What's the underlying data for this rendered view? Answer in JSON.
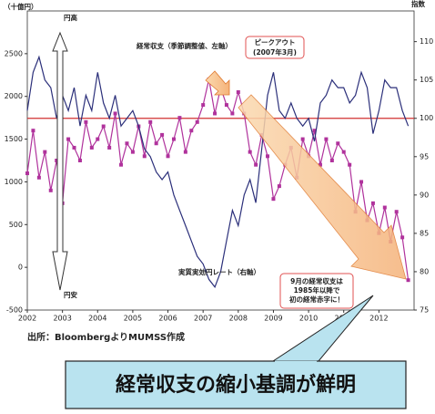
{
  "chart_data": {
    "type": "line",
    "left_axis_unit": "（十億円）",
    "right_axis_unit": "指数",
    "categories": [
      "2002",
      null,
      null,
      null,
      null,
      null,
      "2003",
      null,
      null,
      null,
      null,
      null,
      "2004",
      null,
      null,
      null,
      null,
      null,
      "2005",
      null,
      null,
      null,
      null,
      null,
      "2006",
      null,
      null,
      null,
      null,
      null,
      "2007",
      null,
      null,
      null,
      null,
      null,
      "2008",
      null,
      null,
      null,
      null,
      null,
      "2009",
      null,
      null,
      null,
      null,
      null,
      "2010",
      null,
      null,
      null,
      null,
      null,
      "2011",
      null,
      null,
      null,
      null,
      null,
      "2012",
      null,
      null,
      null,
      null,
      null
    ],
    "series": [
      {
        "name": "経常収支（季節調整値、左軸）",
        "color": "#b0329c",
        "marker": "square",
        "values": [
          1100,
          1600,
          1050,
          1350,
          900,
          1250,
          750,
          1500,
          1400,
          1250,
          1700,
          1400,
          1500,
          1650,
          1400,
          1800,
          1200,
          1450,
          1350,
          1650,
          1300,
          1700,
          1450,
          1550,
          1300,
          1500,
          1750,
          1350,
          1600,
          1700,
          1900,
          2200,
          1800,
          2100,
          1900,
          1800,
          2050,
          1800,
          1350,
          1200,
          1550,
          1300,
          800,
          950,
          1200,
          1400,
          1050,
          1500,
          1300,
          1600,
          1200,
          1500,
          1250,
          1450,
          1350,
          1200,
          650,
          1000,
          550,
          750,
          400,
          700,
          300,
          650,
          350,
          -150
        ]
      },
      {
        "name": "実質実効円レート（右軸）",
        "color": "#2b2f7a",
        "axis": "y2",
        "values": [
          101,
          106,
          108,
          105,
          104,
          100,
          103,
          101,
          104,
          99,
          103,
          101,
          106,
          102,
          100,
          103,
          99,
          100,
          101,
          99,
          96,
          95,
          93,
          92,
          93,
          90,
          88,
          86,
          84,
          82,
          81,
          79,
          78,
          80,
          84,
          88,
          86,
          90,
          92,
          89,
          96,
          103,
          106,
          101,
          100,
          102,
          100,
          99,
          100,
          97,
          102,
          103,
          105,
          104,
          104,
          102,
          103,
          106,
          104,
          98,
          101,
          105,
          104,
          104,
          101,
          99
        ]
      }
    ],
    "ylim": [
      -500,
      3000
    ],
    "yticks": [
      -500,
      0,
      500,
      1000,
      1500,
      2000,
      2500
    ],
    "y2lim": [
      75,
      114
    ],
    "y2ticks": [
      75,
      80,
      85,
      90,
      95,
      100,
      105,
      110
    ],
    "reference_line": {
      "axis": "y2",
      "value": 100,
      "color": "#d03030"
    },
    "annotations": {
      "peak": [
        "ピークアウト",
        "(2007年3月)"
      ],
      "note": [
        "9月の経常収支は",
        "1985年以降で",
        "初の経常赤字に！"
      ],
      "yen_strong": "円高",
      "yen_weak": "円安"
    },
    "source": "出所：BloombergよりMUMSS作成",
    "headline": "経常収支の縮小基調が鮮明"
  }
}
